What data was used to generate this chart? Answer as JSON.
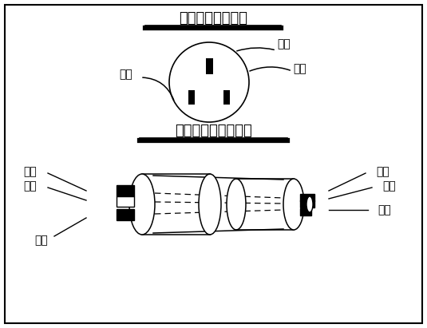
{
  "title1": "美标墙插相位示意",
  "title2": "美标电源线相位示意",
  "bg_color": "#ffffff",
  "label_socket_fire": "火线",
  "label_socket_ground": "地线",
  "label_socket_zero": "零线",
  "label_cord_left_ground": "地线",
  "label_cord_left_zero": "零线",
  "label_cord_left_fire": "火线",
  "label_cord_right_ground": "地线",
  "label_cord_right_fire": "火线",
  "label_cord_right_zero": "零线"
}
